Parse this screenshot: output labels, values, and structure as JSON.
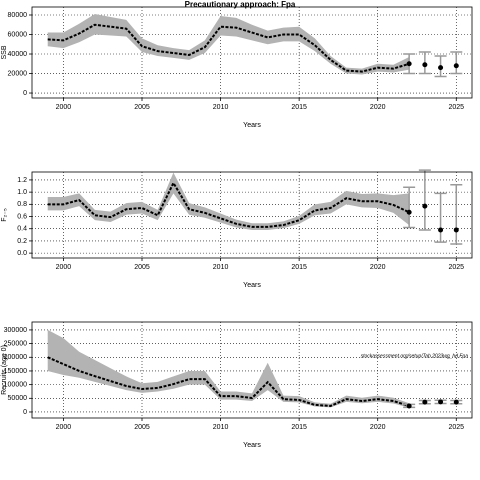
{
  "chart_data": [
    {
      "type": "line",
      "title": "Precautionary approach: Fpa",
      "ylabel": "SSB",
      "xlabel": "Years",
      "x": [
        1999,
        2000,
        2001,
        2002,
        2003,
        2004,
        2005,
        2006,
        2007,
        2008,
        2009,
        2010,
        2011,
        2012,
        2013,
        2014,
        2015,
        2016,
        2017,
        2018,
        2019,
        2020,
        2021,
        2022
      ],
      "values": [
        55000,
        54000,
        61000,
        70000,
        68000,
        66000,
        48000,
        43000,
        41000,
        39000,
        47000,
        68000,
        67000,
        62000,
        57000,
        60000,
        60000,
        49000,
        34000,
        23000,
        22000,
        26000,
        25000,
        30000
      ],
      "lower": [
        48000,
        46000,
        52000,
        60000,
        59000,
        58000,
        42000,
        38000,
        36000,
        34000,
        41000,
        59000,
        58000,
        54000,
        50000,
        53000,
        53000,
        43000,
        30000,
        20000,
        19000,
        22000,
        21000,
        24000
      ],
      "upper": [
        62000,
        62000,
        71000,
        81000,
        78000,
        75000,
        56000,
        49000,
        46000,
        44000,
        54000,
        79000,
        77000,
        70000,
        64000,
        67000,
        68000,
        56000,
        38000,
        26000,
        25000,
        30000,
        29000,
        37000
      ],
      "proj_x": [
        2022,
        2023,
        2024,
        2025
      ],
      "proj_values": [
        30000,
        29000,
        26000,
        28000
      ],
      "proj_lower": [
        20000,
        20000,
        17000,
        20000
      ],
      "proj_upper": [
        40000,
        42000,
        38000,
        42000
      ],
      "color": "#000000",
      "band_color": "#b3b3b3",
      "grid": true,
      "xlim": [
        1998,
        2026
      ],
      "xticks": [
        2000,
        2005,
        2010,
        2015,
        2020,
        2025
      ],
      "ylim": [
        -5100,
        88200
      ],
      "yticks": [
        0,
        20000,
        40000,
        60000,
        80000
      ]
    },
    {
      "type": "line",
      "ylabel": "F₂₋₅",
      "xlabel": "Years",
      "x": [
        1999,
        2000,
        2001,
        2002,
        2003,
        2004,
        2005,
        2006,
        2007,
        2008,
        2009,
        2010,
        2011,
        2012,
        2013,
        2014,
        2015,
        2016,
        2017,
        2018,
        2019,
        2020,
        2021,
        2022
      ],
      "values": [
        0.8,
        0.8,
        0.87,
        0.62,
        0.59,
        0.72,
        0.74,
        0.62,
        1.15,
        0.72,
        0.66,
        0.57,
        0.48,
        0.43,
        0.43,
        0.46,
        0.54,
        0.7,
        0.74,
        0.9,
        0.85,
        0.85,
        0.79,
        0.67
      ],
      "lower": [
        0.7,
        0.7,
        0.77,
        0.54,
        0.51,
        0.63,
        0.65,
        0.54,
        0.98,
        0.63,
        0.58,
        0.5,
        0.42,
        0.38,
        0.38,
        0.41,
        0.48,
        0.62,
        0.65,
        0.8,
        0.75,
        0.74,
        0.66,
        0.46
      ],
      "upper": [
        0.92,
        0.92,
        0.98,
        0.71,
        0.68,
        0.82,
        0.84,
        0.71,
        1.32,
        0.82,
        0.75,
        0.65,
        0.55,
        0.49,
        0.49,
        0.52,
        0.61,
        0.8,
        0.84,
        1.02,
        0.97,
        0.98,
        0.95,
        0.98
      ],
      "proj_x": [
        2022,
        2023,
        2024,
        2025
      ],
      "proj_values": [
        0.67,
        0.77,
        0.38,
        0.38
      ],
      "proj_lower": [
        0.42,
        0.38,
        0.18,
        0.15
      ],
      "proj_upper": [
        1.08,
        1.36,
        0.98,
        1.12
      ],
      "color": "#000000",
      "band_color": "#b3b3b3",
      "grid": true,
      "xlim": [
        1998,
        2026
      ],
      "xticks": [
        2000,
        2005,
        2010,
        2015,
        2020,
        2025
      ],
      "ylim": [
        -0.08,
        1.33
      ],
      "yticks": [
        {
          "value": 0,
          "label": "0.0"
        },
        0.2,
        0.4,
        0.6,
        0.8,
        {
          "value": 1,
          "label": "1.0"
        },
        1.2
      ]
    },
    {
      "type": "line",
      "ylabel": "Recruits (age 0)",
      "xlabel": "Years",
      "annotation": "stockassessment.org/setup/Tab 2023wg_hd Fpa",
      "x": [
        1999,
        2000,
        2001,
        2002,
        2003,
        2004,
        2005,
        2006,
        2007,
        2008,
        2009,
        2010,
        2011,
        2012,
        2013,
        2014,
        2015,
        2016,
        2017,
        2018,
        2019,
        2020,
        2021,
        2022
      ],
      "values": [
        200000,
        175000,
        150000,
        131000,
        113000,
        95000,
        84000,
        88000,
        102000,
        120000,
        120000,
        58000,
        58000,
        51000,
        109000,
        47000,
        44000,
        26000,
        22000,
        47000,
        40000,
        47000,
        40000,
        22000
      ],
      "lower": [
        150000,
        135000,
        125000,
        110000,
        95000,
        80000,
        70000,
        75000,
        85000,
        100000,
        100000,
        45000,
        45000,
        40000,
        80000,
        37000,
        35000,
        20000,
        17000,
        37000,
        32000,
        37000,
        31000,
        16000
      ],
      "upper": [
        300000,
        270000,
        220000,
        190000,
        160000,
        130000,
        105000,
        110000,
        130000,
        150000,
        150000,
        75000,
        75000,
        68000,
        180000,
        60000,
        58000,
        35000,
        30000,
        60000,
        52000,
        60000,
        52000,
        32000
      ],
      "proj_x": [
        2022,
        2023,
        2024,
        2025
      ],
      "proj_values": [
        22000,
        36000,
        37000,
        36000
      ],
      "proj_lower": [
        17000,
        30000,
        31000,
        30000
      ],
      "proj_upper": [
        28000,
        42000,
        43000,
        42000
      ],
      "color": "#000000",
      "band_color": "#b3b3b3",
      "grid": true,
      "xlim": [
        1998,
        2026
      ],
      "xticks": [
        2000,
        2005,
        2010,
        2015,
        2020,
        2025
      ],
      "ylim": [
        -22000,
        329000
      ],
      "yticks": [
        0,
        50000,
        100000,
        150000,
        200000,
        250000,
        300000
      ]
    }
  ]
}
